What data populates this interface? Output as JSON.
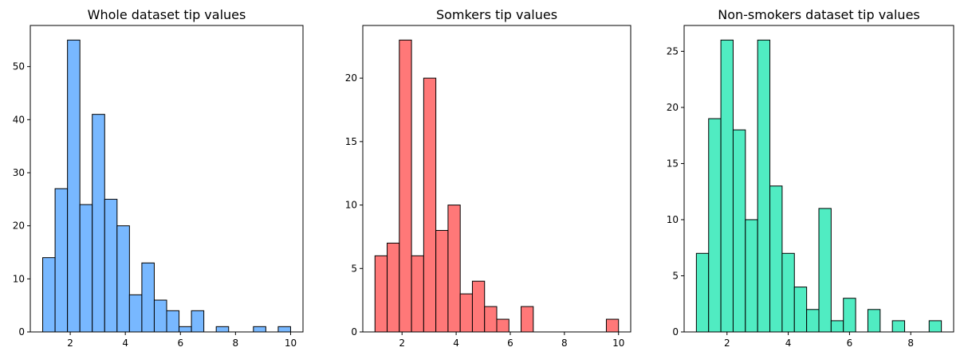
{
  "chart_data": [
    {
      "type": "bar",
      "title": "Whole dataset tip values",
      "xlabel": "",
      "ylabel": "",
      "xlim": [
        0.55,
        10.45
      ],
      "ylim": [
        0,
        57.75
      ],
      "xticks": [
        2,
        4,
        6,
        8,
        10
      ],
      "yticks": [
        0,
        10,
        20,
        30,
        40,
        50
      ],
      "bin_edges": [
        1.0,
        1.45,
        1.9,
        2.35,
        2.8,
        3.25,
        3.7,
        4.15,
        4.6,
        5.05,
        5.5,
        5.95,
        6.4,
        6.85,
        7.3,
        7.75,
        8.2,
        8.65,
        9.1,
        9.55,
        10.0
      ],
      "values": [
        14,
        27,
        55,
        24,
        41,
        25,
        20,
        7,
        13,
        6,
        4,
        1,
        4,
        0,
        1,
        0,
        0,
        1,
        0,
        1
      ],
      "color": "#78b8ff"
    },
    {
      "type": "bar",
      "title": "Somkers tip values",
      "xlabel": "",
      "ylabel": "",
      "xlim": [
        0.55,
        10.45
      ],
      "ylim": [
        0,
        24.15
      ],
      "xticks": [
        2,
        4,
        6,
        8,
        10
      ],
      "yticks": [
        0,
        5,
        10,
        15,
        20
      ],
      "bin_edges": [
        1.0,
        1.45,
        1.9,
        2.35,
        2.8,
        3.25,
        3.7,
        4.15,
        4.6,
        5.05,
        5.5,
        5.95,
        6.4,
        6.85,
        7.3,
        7.75,
        8.2,
        8.65,
        9.1,
        9.55,
        10.0
      ],
      "values": [
        6,
        7,
        23,
        6,
        20,
        8,
        10,
        3,
        4,
        2,
        1,
        0,
        2,
        0,
        0,
        0,
        0,
        0,
        0,
        1
      ],
      "color": "#ff7878"
    },
    {
      "type": "bar",
      "title": "Non-smokers dataset tip values",
      "xlabel": "",
      "ylabel": "",
      "xlim": [
        0.6,
        9.4
      ],
      "ylim": [
        0,
        27.3
      ],
      "xticks": [
        2,
        4,
        6,
        8
      ],
      "yticks": [
        0,
        5,
        10,
        15,
        20,
        25
      ],
      "bin_edges": [
        1.0,
        1.4,
        1.8,
        2.2,
        2.6,
        3.0,
        3.4,
        3.8,
        4.2,
        4.6,
        5.0,
        5.4,
        5.8,
        6.2,
        6.6,
        7.0,
        7.4,
        7.8,
        8.2,
        8.6,
        9.0
      ],
      "values": [
        7,
        19,
        26,
        18,
        10,
        26,
        13,
        7,
        4,
        2,
        11,
        1,
        3,
        0,
        2,
        0,
        1,
        0,
        0,
        1
      ],
      "color": "#50ecc2"
    }
  ]
}
